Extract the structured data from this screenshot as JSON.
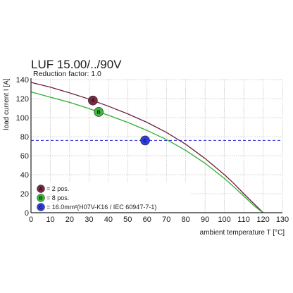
{
  "chart_data": {
    "type": "line",
    "title": "LUF 15.00/../90V",
    "subtitle": "Reduction factor: 1.0",
    "xlabel": "ambient temperature T [°C]",
    "ylabel": "load current I [A]",
    "xlim": [
      0,
      130
    ],
    "ylim": [
      0,
      140
    ],
    "x_ticks": [
      "0",
      "10",
      "20",
      "30",
      "40",
      "50",
      "60",
      "70",
      "80",
      "90",
      "100",
      "110",
      "120",
      "130"
    ],
    "y_ticks": [
      "0",
      "20",
      "40",
      "60",
      "80",
      "100",
      "120",
      "140"
    ],
    "grid": true,
    "series": [
      {
        "name": "= 2 pos.",
        "color": "#6b1f3a",
        "points": [
          [
            0,
            137
          ],
          [
            10,
            132
          ],
          [
            20,
            126
          ],
          [
            30,
            119.5
          ],
          [
            40,
            112
          ],
          [
            50,
            104
          ],
          [
            60,
            95
          ],
          [
            70,
            84.5
          ],
          [
            80,
            72
          ],
          [
            90,
            57
          ],
          [
            100,
            40
          ],
          [
            105,
            30.5
          ],
          [
            110,
            20
          ],
          [
            115,
            10
          ],
          [
            118,
            4
          ],
          [
            120,
            0
          ]
        ]
      },
      {
        "name": "= 8 pos.",
        "color": "#2fae2f",
        "points": [
          [
            0,
            127
          ],
          [
            10,
            121.5
          ],
          [
            20,
            116
          ],
          [
            30,
            109.5
          ],
          [
            40,
            102.5
          ],
          [
            50,
            95
          ],
          [
            60,
            86.5
          ],
          [
            70,
            77
          ],
          [
            80,
            65.5
          ],
          [
            90,
            52
          ],
          [
            100,
            36
          ],
          [
            105,
            27
          ],
          [
            110,
            17.5
          ],
          [
            115,
            8
          ],
          [
            118,
            3
          ],
          [
            120,
            0
          ]
        ]
      }
    ],
    "reference_line": {
      "y": 76,
      "color": "#2a2ad6",
      "style": "dashed"
    },
    "markers": [
      {
        "label": "A",
        "x": 32,
        "y": 118,
        "color": "#7a2a42"
      },
      {
        "label": "B",
        "x": 35,
        "y": 106,
        "color": "#3cb83c"
      },
      {
        "label": "C",
        "x": 59,
        "y": 76,
        "color": "#2f3fe0"
      }
    ],
    "legend": {
      "position": "bottom-left",
      "entries": [
        {
          "marker": "A",
          "text": "= 2 pos.",
          "color": "#7a2a42"
        },
        {
          "marker": "B",
          "text": "= 8 pos.",
          "color": "#3cb83c"
        },
        {
          "marker": "C",
          "text": "= 16.0mm²(H07V-K16 / IEC 60947-7-1)",
          "color": "#2f3fe0"
        }
      ]
    }
  }
}
